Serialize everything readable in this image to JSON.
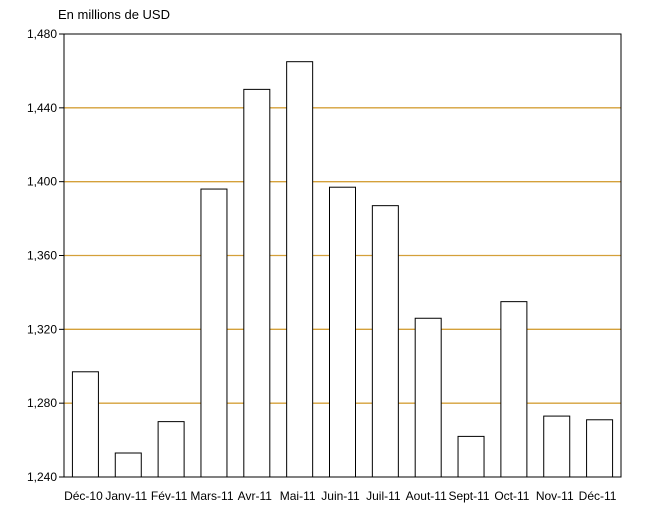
{
  "chart_data": {
    "type": "bar",
    "ylabel": "En millions de USD",
    "categories": [
      "Déc-10",
      "Janv-11",
      "Fév-11",
      "Mars-11",
      "Avr-11",
      "Mai-11",
      "Juin-11",
      "Juil-11",
      "Aout-11",
      "Sept-11",
      "Oct-11",
      "Nov-11",
      "Déc-11"
    ],
    "values": [
      1297,
      1253,
      1270,
      1396,
      1450,
      1465,
      1397,
      1387,
      1326,
      1262,
      1335,
      1273,
      1271
    ],
    "ylim": [
      1240,
      1480
    ],
    "yticks": [
      1240,
      1280,
      1320,
      1360,
      1400,
      1440,
      1480
    ],
    "ytick_labels": [
      "1,240",
      "1,280",
      "1,320",
      "1,360",
      "1,400",
      "1,440",
      "1,480"
    ],
    "grid": true,
    "colors": {
      "bar_fill": "#ffffff",
      "bar_stroke": "#000000",
      "grid": "#d4a03a",
      "axis": "#000000"
    }
  }
}
